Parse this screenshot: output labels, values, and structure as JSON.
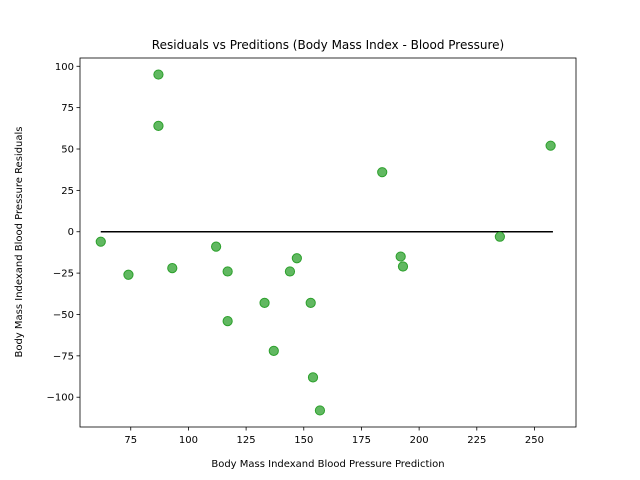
{
  "chart_data": {
    "type": "scatter",
    "title": "Residuals vs Preditions (Body Mass Index - Blood Pressure)",
    "xlabel": "Body Mass Indexand Blood Pressure Prediction",
    "ylabel": "Body Mass Indexand Blood Pressure Residuals",
    "xlim": [
      53,
      268
    ],
    "ylim": [
      -118,
      105
    ],
    "xticks": [
      75,
      100,
      125,
      150,
      175,
      200,
      225,
      250
    ],
    "yticks": [
      -100,
      -75,
      -50,
      -25,
      0,
      25,
      50,
      75,
      100
    ],
    "grid": false,
    "marker_color": "#2ca02c",
    "zero_line": {
      "y": 0,
      "x_from": 62,
      "x_to": 258,
      "color": "#000000"
    },
    "points": [
      {
        "x": 62,
        "y": -6
      },
      {
        "x": 74,
        "y": -26
      },
      {
        "x": 87,
        "y": 95
      },
      {
        "x": 87,
        "y": 64
      },
      {
        "x": 93,
        "y": -22
      },
      {
        "x": 112,
        "y": -9
      },
      {
        "x": 117,
        "y": -24
      },
      {
        "x": 117,
        "y": -54
      },
      {
        "x": 133,
        "y": -43
      },
      {
        "x": 137,
        "y": -72
      },
      {
        "x": 144,
        "y": -24
      },
      {
        "x": 147,
        "y": -16
      },
      {
        "x": 153,
        "y": -43
      },
      {
        "x": 154,
        "y": -88
      },
      {
        "x": 157,
        "y": -108
      },
      {
        "x": 184,
        "y": 36
      },
      {
        "x": 192,
        "y": -15
      },
      {
        "x": 193,
        "y": -21
      },
      {
        "x": 235,
        "y": -3
      },
      {
        "x": 257,
        "y": 52
      }
    ]
  }
}
